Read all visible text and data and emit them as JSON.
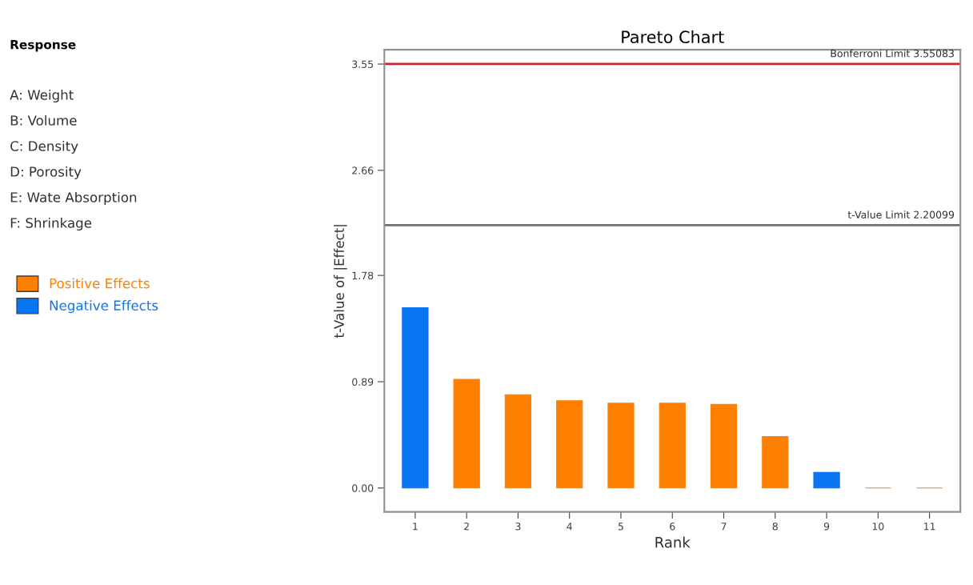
{
  "chart_data": {
    "type": "bar",
    "title": "Pareto Chart",
    "xlabel": "Rank",
    "ylabel": "t-Value of |Effect|",
    "categories": [
      "1",
      "2",
      "3",
      "4",
      "5",
      "6",
      "7",
      "8",
      "9",
      "10",
      "11"
    ],
    "series": [
      {
        "name": "Positive Effects",
        "color": "#ff7f00",
        "values": [
          null,
          0.91,
          0.78,
          0.73,
          0.71,
          0.71,
          0.7,
          0.43,
          null,
          0.0,
          0.0
        ]
      },
      {
        "name": "Negative Effects",
        "color": "#0a75f0",
        "values": [
          1.51,
          null,
          null,
          null,
          null,
          null,
          null,
          null,
          0.13,
          null,
          null
        ]
      }
    ],
    "ylim": [
      -0.2,
      3.67
    ],
    "yticks": [
      {
        "value": 0,
        "label": "0.00"
      },
      0.89,
      1.78,
      2.66,
      3.55
    ],
    "ref_lines": [
      {
        "axis": "y",
        "value": 3.55083,
        "label": "Bonferroni Limit 3.55083",
        "color": "#d62030"
      },
      {
        "axis": "y",
        "value": 2.20099,
        "label": "t-Value Limit 2.20099",
        "color": "#707070"
      }
    ],
    "legend_title": "Response",
    "annotations": [
      "A: Weight",
      "B: Volume",
      "C: Density",
      "D: Porosity",
      "E: Wate Absorption",
      "F: Shrinkage"
    ],
    "legend": "left",
    "grid": false
  }
}
